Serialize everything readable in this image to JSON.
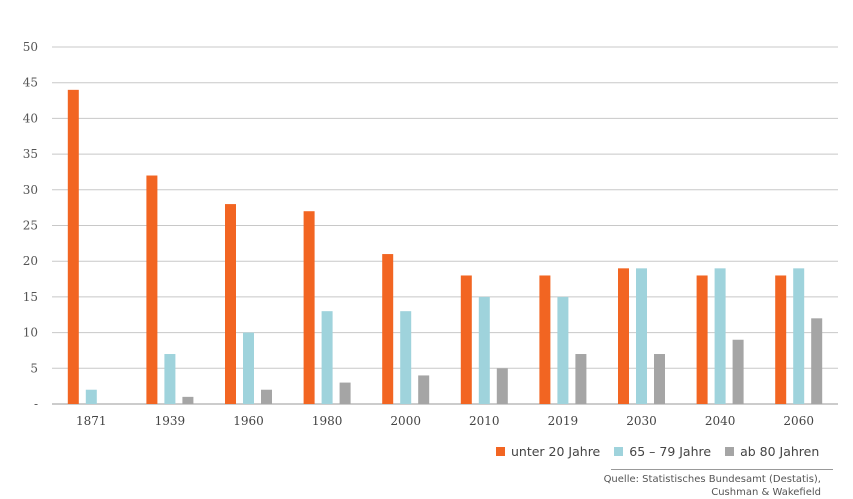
{
  "chart_data": {
    "type": "bar",
    "categories": [
      "1871",
      "1939",
      "1960",
      "1980",
      "2000",
      "2010",
      "2019",
      "2030",
      "2040",
      "2060"
    ],
    "series": [
      {
        "name": "unter 20 Jahre",
        "color": "#f26522",
        "values": [
          44,
          32,
          28,
          27,
          21,
          18,
          18,
          19,
          18,
          18
        ]
      },
      {
        "name": "65 – 79 Jahre",
        "color": "#9fd3dc",
        "values": [
          2,
          7,
          10,
          13,
          13,
          15,
          15,
          19,
          19,
          19
        ]
      },
      {
        "name": "ab 80 Jahren",
        "color": "#a5a5a5",
        "values": [
          0,
          1,
          2,
          3,
          4,
          5,
          7,
          7,
          9,
          12
        ]
      }
    ],
    "ylim": [
      0,
      50
    ],
    "yticks": [
      "-",
      "5",
      "10",
      "15",
      "20",
      "25",
      "30",
      "35",
      "40",
      "45",
      "50"
    ],
    "grid": true,
    "legend": "bottom-right"
  },
  "source": {
    "line1": "Quelle: Statistisches Bundesamt (Destatis),",
    "line2": "Cushman & Wakefield"
  }
}
